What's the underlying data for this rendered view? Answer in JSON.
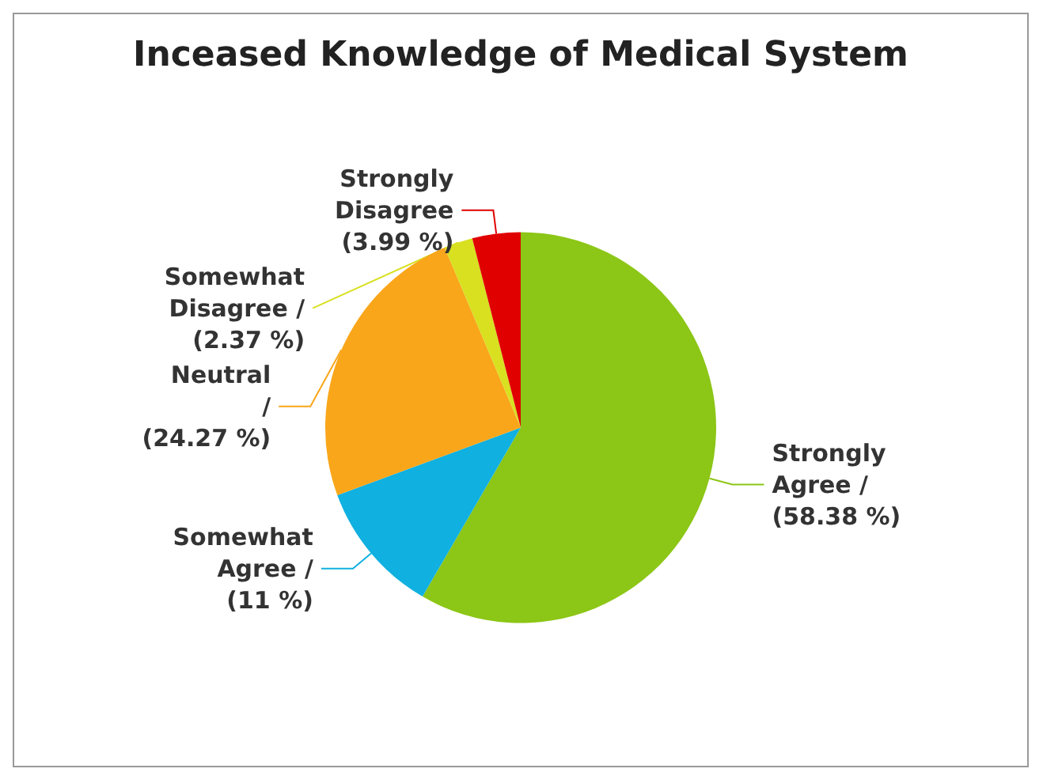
{
  "chart_data": {
    "type": "pie",
    "title": "Inceased Knowledge of Medical System",
    "categories": [
      "Strongly Agree /",
      "Somewhat Agree /",
      "Neutral /",
      "Somewhat Disagree /",
      "Strongly Disagree"
    ],
    "values": [
      58.38,
      11,
      24.27,
      2.37,
      3.99
    ],
    "value_labels": [
      "(58.38 %)",
      "(11 %)",
      "(24.27 %)",
      "(2.37 %)",
      "(3.99 %)"
    ],
    "colors": [
      "#8cc616",
      "#10b0e0",
      "#f9a61a",
      "#d8e020",
      "#e00000"
    ],
    "legend": false
  }
}
